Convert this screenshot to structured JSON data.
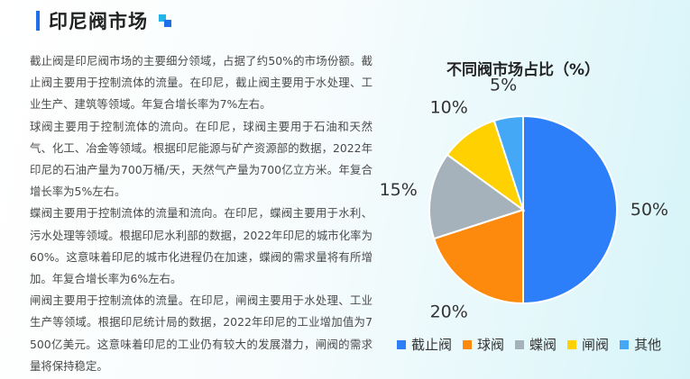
{
  "page": {
    "title": "印尼阀市场",
    "paragraphs": [
      "截止阀是印尼阀市场的主要细分领域，占据了约50%的市场份额。截止阀主要用于控制流体的流量。在印尼，截止阀主要用于水处理、工业生产、建筑等领域。年复合增长率为7%左右。",
      "球阀主要用于控制流体的流向。在印尼，球阀主要用于石油和天然气、化工、冶金等领域。根据印尼能源与矿产资源部的数据，2022年印尼的石油产量为700万桶/天，天然气产量为700亿立方米。年复合增长率为5%左右。",
      "蝶阀主要用于控制流体的流量和流向。在印尼，蝶阀主要用于水利、污水处理等领域。根据印尼水利部的数据，2022年印尼的城市化率为60%。这意味着印尼的城市化进程仍在加速，蝶阀的需求量将有所增加。年复合增长率为6%左右。",
      "闸阀主要用于控制流体的流量。在印尼，闸阀主要用于水处理、工业生产等领域。根据印尼统计局的数据，2022年印尼的工业增加值为7500亿美元。这意味着印尼的工业仍有较大的发展潜力，闸阀的需求量将保持稳定。"
    ],
    "accent_color": "#1f6fe8"
  },
  "chart_data": {
    "type": "pie",
    "title": "不同阀市场占比（%）",
    "categories": [
      "截止阀",
      "球阀",
      "蝶阀",
      "闸阀",
      "其他"
    ],
    "values": [
      50,
      20,
      15,
      10,
      5
    ],
    "labels": [
      "50%",
      "20%",
      "15%",
      "10%",
      "5%"
    ],
    "colors": [
      "#2d7ff9",
      "#fd8a0c",
      "#a5b2bc",
      "#ffd100",
      "#45a8f6"
    ],
    "legend_position": "bottom"
  }
}
